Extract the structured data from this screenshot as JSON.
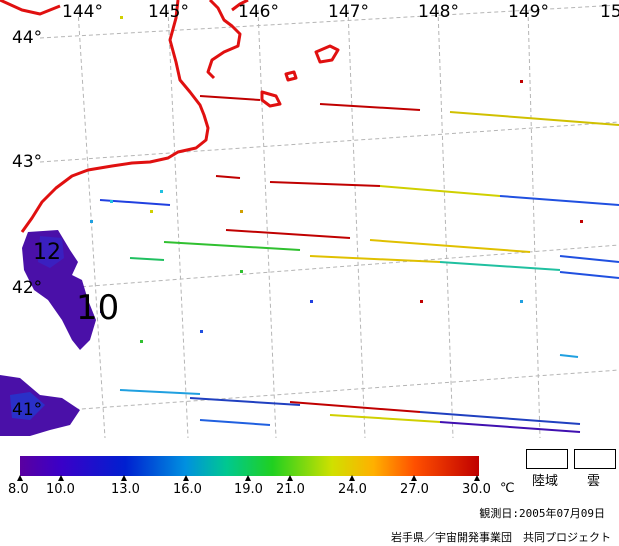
{
  "map": {
    "longitude_labels": [
      "144°",
      "145°",
      "146°",
      "147°",
      "148°",
      "149°",
      "15"
    ],
    "latitude_labels": [
      "44°",
      "43°",
      "42°",
      "41°"
    ],
    "temperature_labels": [
      "12",
      "10"
    ],
    "coastline_color": "#e01010",
    "grid_color": "#b0b0b0"
  },
  "colorbar": {
    "ticks": [
      "8.0",
      "10.0",
      "13.0",
      "16.0",
      "19.0",
      "21.0",
      "24.0",
      "27.0",
      "30.0"
    ],
    "unit": "℃",
    "colors": [
      "#5a00a0",
      "#3a00c8",
      "#0020d0",
      "#0090e0",
      "#00c890",
      "#20d020",
      "#d0e000",
      "#ffb000",
      "#ff5000",
      "#c00000"
    ]
  },
  "legend": {
    "land_label": "陸域",
    "cloud_label": "雲"
  },
  "observation_date": "観測日:2005年07月09日",
  "credit": "岩手県／宇宙開発事業団　共同プロジェクト"
}
